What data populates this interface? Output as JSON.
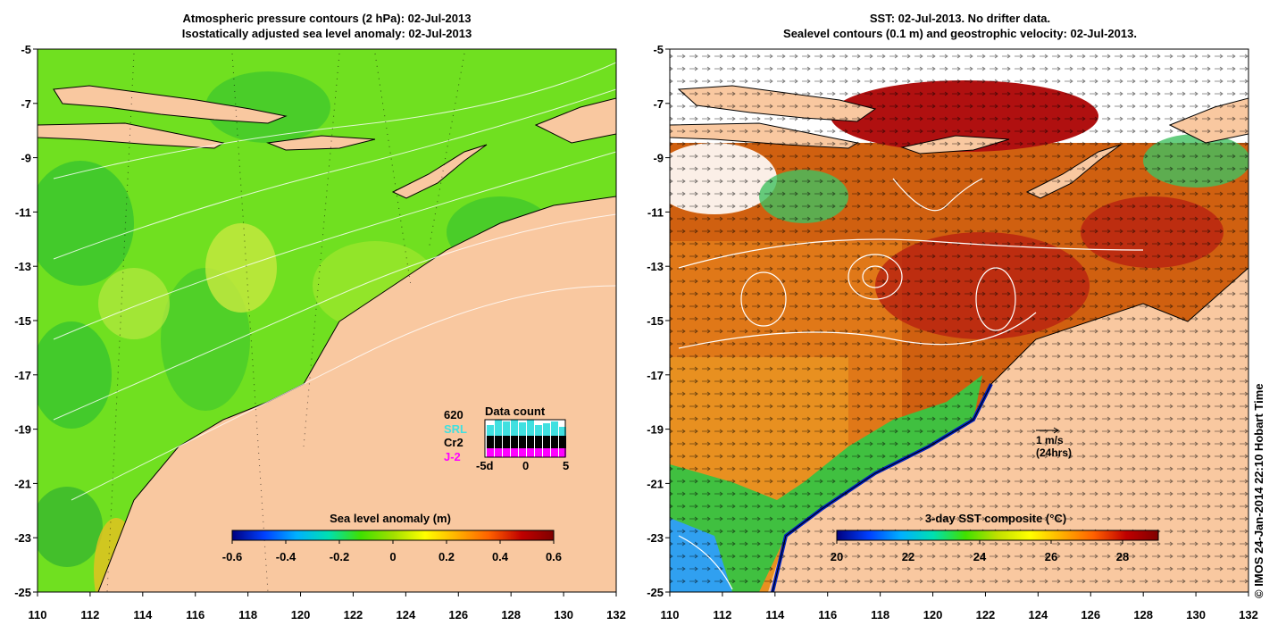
{
  "left_panel": {
    "title_line1": "Atmospheric pressure contours (2 hPa): 02-Jul-2013",
    "title_line2": "Isostatically adjusted sea level anomaly: 02-Jul-2013",
    "colorbar_title": "Sea level anomaly (m)",
    "colorbar_ticks": [
      "-0.6",
      "-0.4",
      "-0.2",
      "0",
      "0.2",
      "0.4",
      "0.6"
    ],
    "colorbar_colors": [
      "#00007f",
      "#0040ff",
      "#00b0ff",
      "#00e0b0",
      "#40e000",
      "#a0e000",
      "#ffff00",
      "#ffb000",
      "#ff6000",
      "#c00000",
      "#800000"
    ],
    "inset": {
      "title": "Data count",
      "count": "620",
      "missions": [
        {
          "label": "SRL",
          "color": "#40e0e0"
        },
        {
          "label": "Cr2",
          "color": "#000000"
        },
        {
          "label": "J-2",
          "color": "#ff00ff"
        }
      ],
      "x_ticks": [
        "-5d",
        "0",
        "5"
      ]
    }
  },
  "right_panel": {
    "title_line1": "SST: 02-Jul-2013. No drifter data.",
    "title_line2": "Sealevel contours (0.1 m) and geostrophic velocity: 02-Jul-2013.",
    "colorbar_title": "3-day SST composite (°C)",
    "colorbar_ticks": [
      "20",
      "22",
      "24",
      "26",
      "28"
    ],
    "colorbar_colors": [
      "#00007f",
      "#0040ff",
      "#00b0ff",
      "#00e0b0",
      "#40e000",
      "#c0e000",
      "#ffff00",
      "#ffb000",
      "#ff6000",
      "#c00000",
      "#800000"
    ],
    "scale_arrow": {
      "label": "1 m/s",
      "sublabel": "(24hrs)"
    }
  },
  "axes": {
    "lon_ticks": [
      "110",
      "112",
      "114",
      "116",
      "118",
      "120",
      "122",
      "124",
      "126",
      "128",
      "130",
      "132"
    ],
    "lat_ticks": [
      "-5",
      "-7",
      "-9",
      "-11",
      "-13",
      "-15",
      "-17",
      "-19",
      "-21",
      "-23",
      "-25"
    ]
  },
  "colors": {
    "land": "#f9c8a0",
    "sea_green": "#70e020",
    "sst_warm": "#d06010"
  },
  "copyright": "© IMOS 24-Jan-2014 22:10 Hobart Time"
}
